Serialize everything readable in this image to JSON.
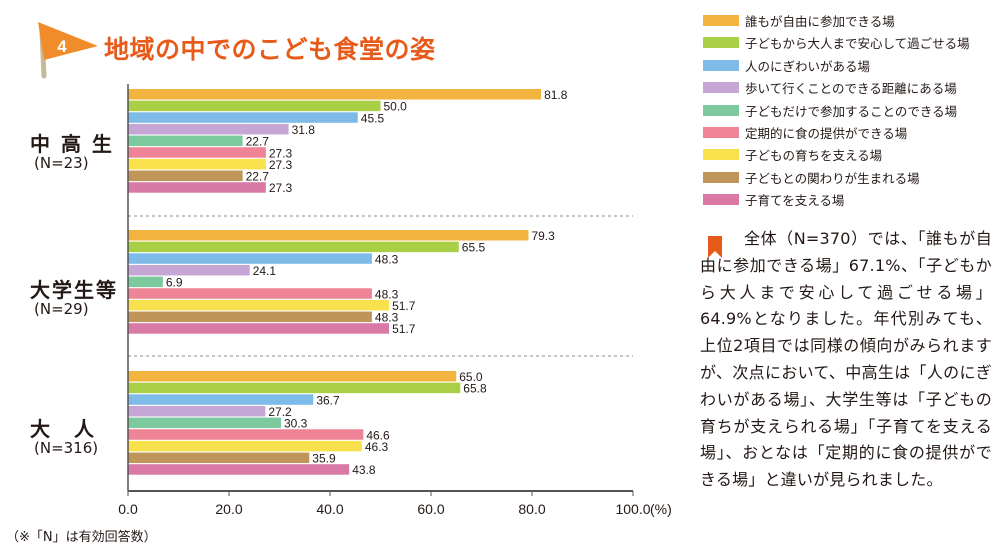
{
  "header": {
    "badge_number": "4",
    "title": "地域の中でのこども食堂の姿"
  },
  "colors": {
    "title": "#e85a1a",
    "badge_flag": "#f08c2a",
    "badge_pole": "#c8b99a",
    "note_icon": "#e85a1a",
    "axis": "#555555",
    "divider": "#888888"
  },
  "chart_data": {
    "type": "bar",
    "orientation": "horizontal",
    "title": "地域の中でのこども食堂の姿",
    "xlabel": "(%)",
    "xlim": [
      0,
      100
    ],
    "xticks": [
      "0.0",
      "20.0",
      "40.0",
      "60.0",
      "80.0",
      "100.0"
    ],
    "categories": [
      "中高生",
      "大学生等",
      "大人"
    ],
    "category_labels": [
      {
        "name": "中 高 生",
        "n": "(N=23)"
      },
      {
        "name": "大学生等",
        "n": "(N=29)"
      },
      {
        "name": "大　人",
        "n": "(N=316)"
      }
    ],
    "series": [
      {
        "name": "誰もが自由に参加できる場",
        "color": "#f3b33f",
        "values": [
          81.8,
          79.3,
          65.0
        ]
      },
      {
        "name": "子どもから大人まで安心して過ごせる場",
        "color": "#a8cf45",
        "values": [
          50.0,
          65.5,
          65.8
        ]
      },
      {
        "name": "人のにぎわいがある場",
        "color": "#7fbbe8",
        "values": [
          45.5,
          48.3,
          36.7
        ]
      },
      {
        "name": "歩いて行くことのできる距離にある場",
        "color": "#c5a6d4",
        "values": [
          31.8,
          24.1,
          27.2
        ]
      },
      {
        "name": "子どもだけで参加することのできる場",
        "color": "#7dc99e",
        "values": [
          22.7,
          6.9,
          30.3
        ]
      },
      {
        "name": "定期的に食の提供ができる場",
        "color": "#ee8495",
        "values": [
          27.3,
          48.3,
          46.6
        ]
      },
      {
        "name": "子どもの育ちを支える場",
        "color": "#f8e14c",
        "values": [
          27.3,
          51.7,
          46.3
        ]
      },
      {
        "name": "子どもとの関わりが生まれる場",
        "color": "#bf955a",
        "values": [
          22.7,
          48.3,
          35.9
        ]
      },
      {
        "name": "子育てを支える場",
        "color": "#d97aa6",
        "values": [
          27.3,
          51.7,
          43.8
        ]
      }
    ]
  },
  "footnote": "（※「N」は有効回答数）",
  "note": {
    "text": "全体（N=370）では、「誰もが自由に参加できる場」67.1%、「子どもから大人まで安心して過ごせる場」64.9%となりました。年代別みても、上位2項目では同様の傾向がみられますが、次点において、中高生は「人のにぎわいがある場」、大学生等は「子どもの育ちが支えられる場」「子育てを支える場」、おとなは「定期的に食の提供ができる場」と違いが見られました。"
  }
}
